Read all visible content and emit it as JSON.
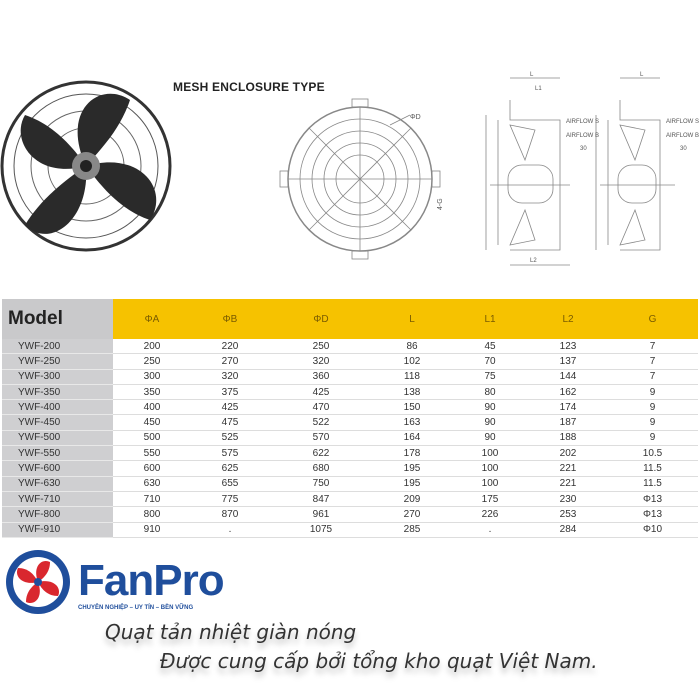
{
  "diagram": {
    "title": "MESH ENCLOSURE TYPE",
    "labels": {
      "d": "ΦD",
      "g": "4-G",
      "l": "L",
      "l1": "L1",
      "l2": "L2",
      "phiA": "ΦA",
      "phiB": "ΦB",
      "airflow_s": "AIRFLOW S",
      "airflow_b": "AIRFLOW B",
      "dim30": "30"
    }
  },
  "table": {
    "headers": [
      "Model",
      "ΦA",
      "ΦB",
      "ΦD",
      "L",
      "L1",
      "L2",
      "G"
    ],
    "rows": [
      [
        "YWF-200",
        "200",
        "220",
        "250",
        "86",
        "45",
        "123",
        "7"
      ],
      [
        "YWF-250",
        "250",
        "270",
        "320",
        "102",
        "70",
        "137",
        "7"
      ],
      [
        "YWF-300",
        "300",
        "320",
        "360",
        "118",
        "75",
        "144",
        "7"
      ],
      [
        "YWF-350",
        "350",
        "375",
        "425",
        "138",
        "80",
        "162",
        "9"
      ],
      [
        "YWF-400",
        "400",
        "425",
        "470",
        "150",
        "90",
        "174",
        "9"
      ],
      [
        "YWF-450",
        "450",
        "475",
        "522",
        "163",
        "90",
        "187",
        "9"
      ],
      [
        "YWF-500",
        "500",
        "525",
        "570",
        "164",
        "90",
        "188",
        "9"
      ],
      [
        "YWF-550",
        "550",
        "575",
        "622",
        "178",
        "100",
        "202",
        "10.5"
      ],
      [
        "YWF-600",
        "600",
        "625",
        "680",
        "195",
        "100",
        "221",
        "11.5"
      ],
      [
        "YWF-630",
        "630",
        "655",
        "750",
        "195",
        "100",
        "221",
        "11.5"
      ],
      [
        "YWF-710",
        "710",
        "775",
        "847",
        "209",
        "175",
        "230",
        "Φ13"
      ],
      [
        "YWF-800",
        "800",
        "870",
        "961",
        "270",
        "226",
        "253",
        "Φ13"
      ],
      [
        "YWF-910",
        "910",
        ".",
        "1075",
        "285",
        ".",
        "284",
        "Φ10"
      ]
    ]
  },
  "brand": {
    "name": "FanPro",
    "tagline": "CHUYÊN NGHIỆP – UY TÍN – BỀN VỮNG",
    "colors": {
      "blue": "#1f4e9c",
      "red": "#d9272e",
      "header_yellow": "#f6c200"
    },
    "logo_icon": "fan-icon"
  },
  "caption": {
    "line1": "Quạt tản nhiệt giàn nóng",
    "line2": "Được cung cấp bởi tổng kho quạt Việt Nam."
  }
}
